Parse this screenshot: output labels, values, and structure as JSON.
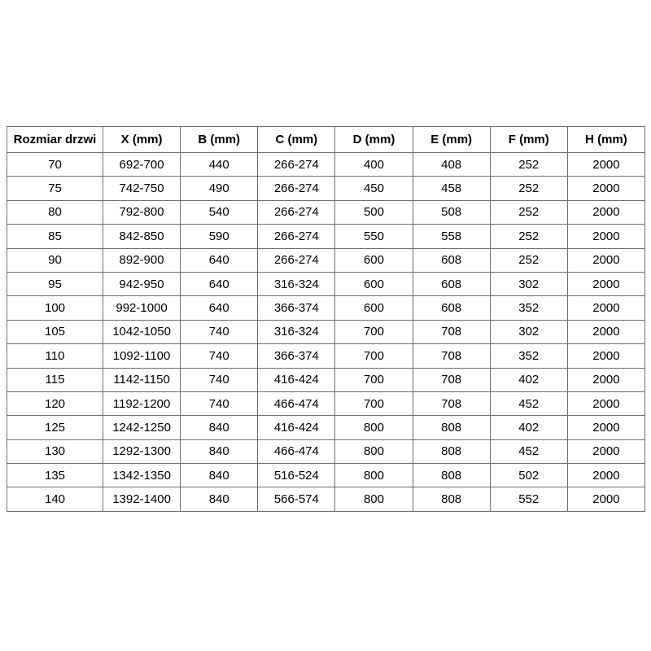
{
  "table": {
    "name": "door-size-specification-table",
    "columns": [
      "Rozmiar drzwi",
      "X (mm)",
      "B (mm)",
      "C (mm)",
      "D (mm)",
      "E (mm)",
      "F (mm)",
      "H (mm)"
    ],
    "rows": [
      [
        "70",
        "692-700",
        "440",
        "266-274",
        "400",
        "408",
        "252",
        "2000"
      ],
      [
        "75",
        "742-750",
        "490",
        "266-274",
        "450",
        "458",
        "252",
        "2000"
      ],
      [
        "80",
        "792-800",
        "540",
        "266-274",
        "500",
        "508",
        "252",
        "2000"
      ],
      [
        "85",
        "842-850",
        "590",
        "266-274",
        "550",
        "558",
        "252",
        "2000"
      ],
      [
        "90",
        "892-900",
        "640",
        "266-274",
        "600",
        "608",
        "252",
        "2000"
      ],
      [
        "95",
        "942-950",
        "640",
        "316-324",
        "600",
        "608",
        "302",
        "2000"
      ],
      [
        "100",
        "992-1000",
        "640",
        "366-374",
        "600",
        "608",
        "352",
        "2000"
      ],
      [
        "105",
        "1042-1050",
        "740",
        "316-324",
        "700",
        "708",
        "302",
        "2000"
      ],
      [
        "110",
        "1092-1100",
        "740",
        "366-374",
        "700",
        "708",
        "352",
        "2000"
      ],
      [
        "115",
        "1142-1150",
        "740",
        "416-424",
        "700",
        "708",
        "402",
        "2000"
      ],
      [
        "120",
        "1192-1200",
        "740",
        "466-474",
        "700",
        "708",
        "452",
        "2000"
      ],
      [
        "125",
        "1242-1250",
        "840",
        "416-424",
        "800",
        "808",
        "402",
        "2000"
      ],
      [
        "130",
        "1292-1300",
        "840",
        "466-474",
        "800",
        "808",
        "452",
        "2000"
      ],
      [
        "135",
        "1342-1350",
        "840",
        "516-524",
        "800",
        "808",
        "502",
        "2000"
      ],
      [
        "140",
        "1392-1400",
        "840",
        "566-574",
        "800",
        "808",
        "552",
        "2000"
      ]
    ],
    "colors": {
      "border": "#6e6e6e",
      "text": "#000000",
      "background": "#ffffff"
    }
  }
}
